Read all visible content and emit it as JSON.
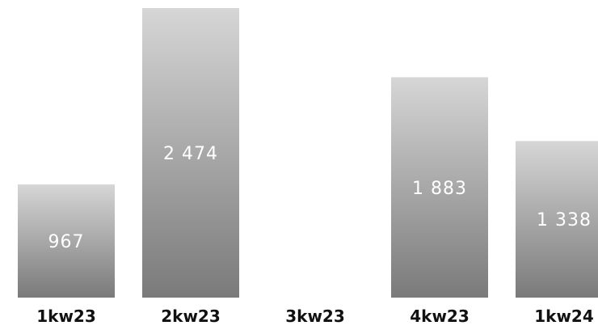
{
  "chart_data": {
    "type": "bar",
    "categories": [
      "1kw23",
      "2kw23",
      "3kw23",
      "4kw23",
      "1kw24"
    ],
    "values": [
      967,
      2474,
      0,
      1883,
      1338
    ],
    "value_labels": [
      "967",
      "2 474",
      "",
      "1 883",
      "1 338"
    ],
    "ylim": [
      0,
      2474
    ],
    "grid": false,
    "legend": "none",
    "colors": {
      "bar_top": "#d6d6d6",
      "bar_bottom": "#7a7a7a",
      "value_text": "#ffffff",
      "category_text": "#111111"
    }
  }
}
